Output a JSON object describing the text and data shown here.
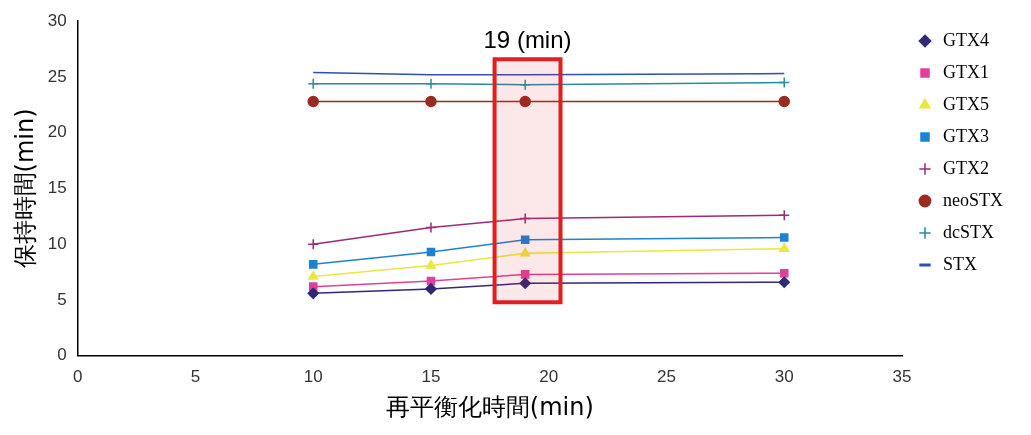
{
  "chart_data": {
    "type": "line",
    "xlabel": "再平衡化時間(min)",
    "ylabel": "保持時間(min)",
    "x": [
      10,
      15,
      19,
      30
    ],
    "xlim": [
      0,
      35
    ],
    "xticks": [
      0,
      5,
      10,
      15,
      20,
      25,
      30,
      35
    ],
    "ylim": [
      0,
      30
    ],
    "yticks": [
      0,
      5,
      10,
      15,
      20,
      25,
      30
    ],
    "grid": false,
    "legend": "right",
    "line_style": "solid",
    "bands": [
      {
        "axis": "x",
        "from": 17.7,
        "to": 20.5,
        "label": "19 (min)",
        "color": "#e02020"
      }
    ],
    "series": [
      {
        "name": "GTX4",
        "color": "#2e2a78",
        "marker": "diamond",
        "values": [
          5.6,
          6.0,
          6.5,
          6.6
        ]
      },
      {
        "name": "GTX1",
        "color": "#e0409a",
        "marker": "square",
        "values": [
          6.2,
          6.7,
          7.3,
          7.4
        ]
      },
      {
        "name": "GTX5",
        "color": "#e8e840",
        "marker": "triangle",
        "values": [
          7.1,
          8.1,
          9.2,
          9.6
        ]
      },
      {
        "name": "GTX3",
        "color": "#1e82d0",
        "marker": "square",
        "values": [
          8.2,
          9.3,
          10.4,
          10.6
        ]
      },
      {
        "name": "GTX2",
        "color": "#a0287a",
        "marker": "cross",
        "values": [
          10.0,
          11.5,
          12.3,
          12.6
        ]
      },
      {
        "name": "neoSTX",
        "color": "#9b2a22",
        "marker": "circle",
        "values": [
          22.8,
          22.8,
          22.8,
          22.8
        ]
      },
      {
        "name": "dcSTX",
        "color": "#2a8aa0",
        "marker": "cross",
        "values": [
          24.4,
          24.4,
          24.3,
          24.5
        ]
      },
      {
        "name": "STX",
        "color": "#3050b0",
        "marker": "none",
        "values": [
          25.4,
          25.2,
          25.2,
          25.3
        ]
      }
    ]
  }
}
